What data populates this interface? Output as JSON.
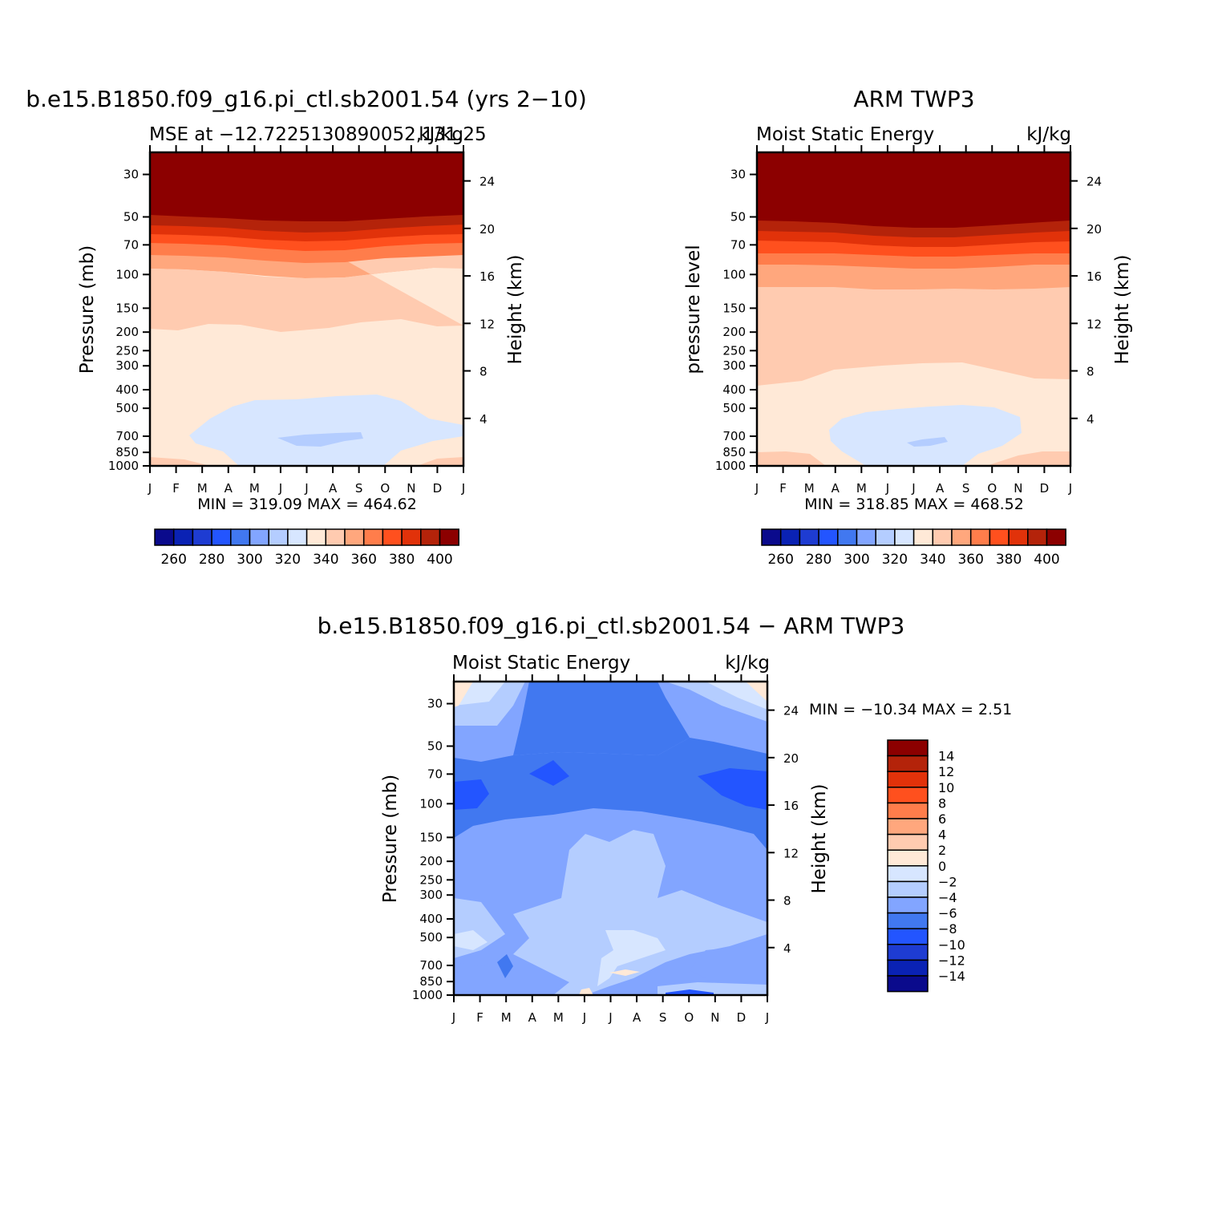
{
  "chart_data": [
    {
      "type": "heatmap",
      "id": "model",
      "title": "b.e15.B1850.f09_g16.pi_ctl.sb2001.54 (yrs 2−10)",
      "subtitle_left": "MSE at −12.7225130890052,131.25",
      "subtitle_right": "kJ/kg",
      "ylabel": "Pressure  (mb)",
      "ylabel_right": "Height  (km)",
      "x_ticks": [
        "J",
        "F",
        "M",
        "A",
        "M",
        "J",
        "J",
        "A",
        "S",
        "O",
        "N",
        "D",
        "J"
      ],
      "pressure_ticks": [
        30,
        50,
        70,
        100,
        150,
        200,
        250,
        300,
        400,
        500,
        700,
        850,
        1000
      ],
      "height_ticks": [
        24,
        20,
        16,
        12,
        8,
        4
      ],
      "ylim_mb": [
        1000,
        23
      ],
      "stats": "MIN = 319.09  MAX = 464.62",
      "min": 319.09,
      "max": 464.62,
      "colorbar_labels": [
        "260",
        "280",
        "300",
        "320",
        "340",
        "360",
        "380",
        "400"
      ],
      "contour_levels": [
        250,
        260,
        270,
        280,
        290,
        300,
        310,
        320,
        330,
        340,
        350,
        360,
        370,
        380,
        390,
        400
      ]
    },
    {
      "type": "heatmap",
      "id": "obs",
      "title": "ARM TWP3",
      "subtitle_left": "Moist Static Energy",
      "subtitle_right": "kJ/kg",
      "ylabel": "pressure  level",
      "ylabel_right": "Height  (km)",
      "x_ticks": [
        "J",
        "F",
        "M",
        "A",
        "M",
        "J",
        "J",
        "A",
        "S",
        "O",
        "N",
        "D",
        "J"
      ],
      "pressure_ticks": [
        30,
        50,
        70,
        100,
        150,
        200,
        250,
        300,
        400,
        500,
        700,
        850,
        1000
      ],
      "height_ticks": [
        24,
        20,
        16,
        12,
        8,
        4
      ],
      "ylim_mb": [
        1000,
        23
      ],
      "stats": "MIN = 318.85  MAX = 468.52",
      "min": 318.85,
      "max": 468.52,
      "colorbar_labels": [
        "260",
        "280",
        "300",
        "320",
        "340",
        "360",
        "380",
        "400"
      ]
    },
    {
      "type": "heatmap",
      "id": "diff",
      "title": "b.e15.B1850.f09_g16.pi_ctl.sb2001.54 − ARM TWP3",
      "subtitle_left": "Moist Static Energy",
      "subtitle_right": "kJ/kg",
      "ylabel": "Pressure  (mb)",
      "ylabel_right": "Height  (km)",
      "x_ticks": [
        "J",
        "F",
        "M",
        "A",
        "M",
        "J",
        "J",
        "A",
        "S",
        "O",
        "N",
        "D",
        "J"
      ],
      "pressure_ticks": [
        30,
        50,
        70,
        100,
        150,
        200,
        250,
        300,
        400,
        500,
        700,
        850,
        1000
      ],
      "height_ticks": [
        24,
        20,
        16,
        12,
        8,
        4
      ],
      "ylim_mb": [
        1000,
        23
      ],
      "stats": "MIN = −10.34  MAX =    2.51",
      "min": -10.34,
      "max": 2.51,
      "colorbar_labels": [
        "14",
        "12",
        "10",
        "8",
        "6",
        "4",
        "2",
        "0",
        "−2",
        "−4",
        "−6",
        "−8",
        "−10",
        "−12",
        "−14"
      ],
      "contour_levels": [
        -14,
        -12,
        -10,
        -8,
        -6,
        -4,
        -2,
        0,
        2,
        4,
        6,
        8,
        10,
        12,
        14
      ]
    }
  ],
  "palette": [
    "#0a0a8c",
    "#0a22b4",
    "#1e3cd2",
    "#2355ff",
    "#4178f0",
    "#82a5ff",
    "#b4cdff",
    "#d7e6ff",
    "#ffe9d7",
    "#ffcbb0",
    "#ffa77d",
    "#ff7d4b",
    "#ff501e",
    "#e1320a",
    "#b4230a",
    "#8c0000"
  ]
}
